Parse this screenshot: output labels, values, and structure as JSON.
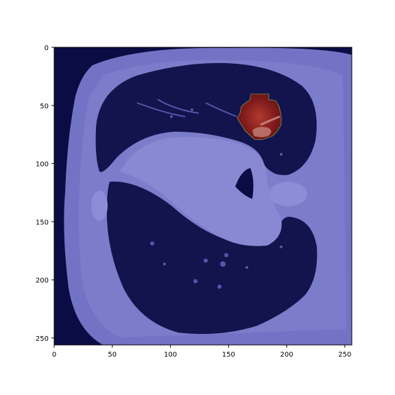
{
  "figure": {
    "axes": {
      "x_ticks": [
        0,
        50,
        100,
        150,
        200,
        250
      ],
      "y_ticks": [
        0,
        50,
        100,
        150,
        200,
        250
      ],
      "xlim": [
        0,
        256
      ],
      "ylim": [
        256,
        0
      ]
    },
    "image": {
      "subject": "axial chest CT slice",
      "colormap_overlay": "blue tint",
      "mask_color": "#8b1e1e"
    },
    "colors": {
      "background_dark": "#0c0c45",
      "tissue_tint": "#7273c4",
      "lung_dark": "#13134e",
      "mask": "#8b1e1e"
    }
  }
}
